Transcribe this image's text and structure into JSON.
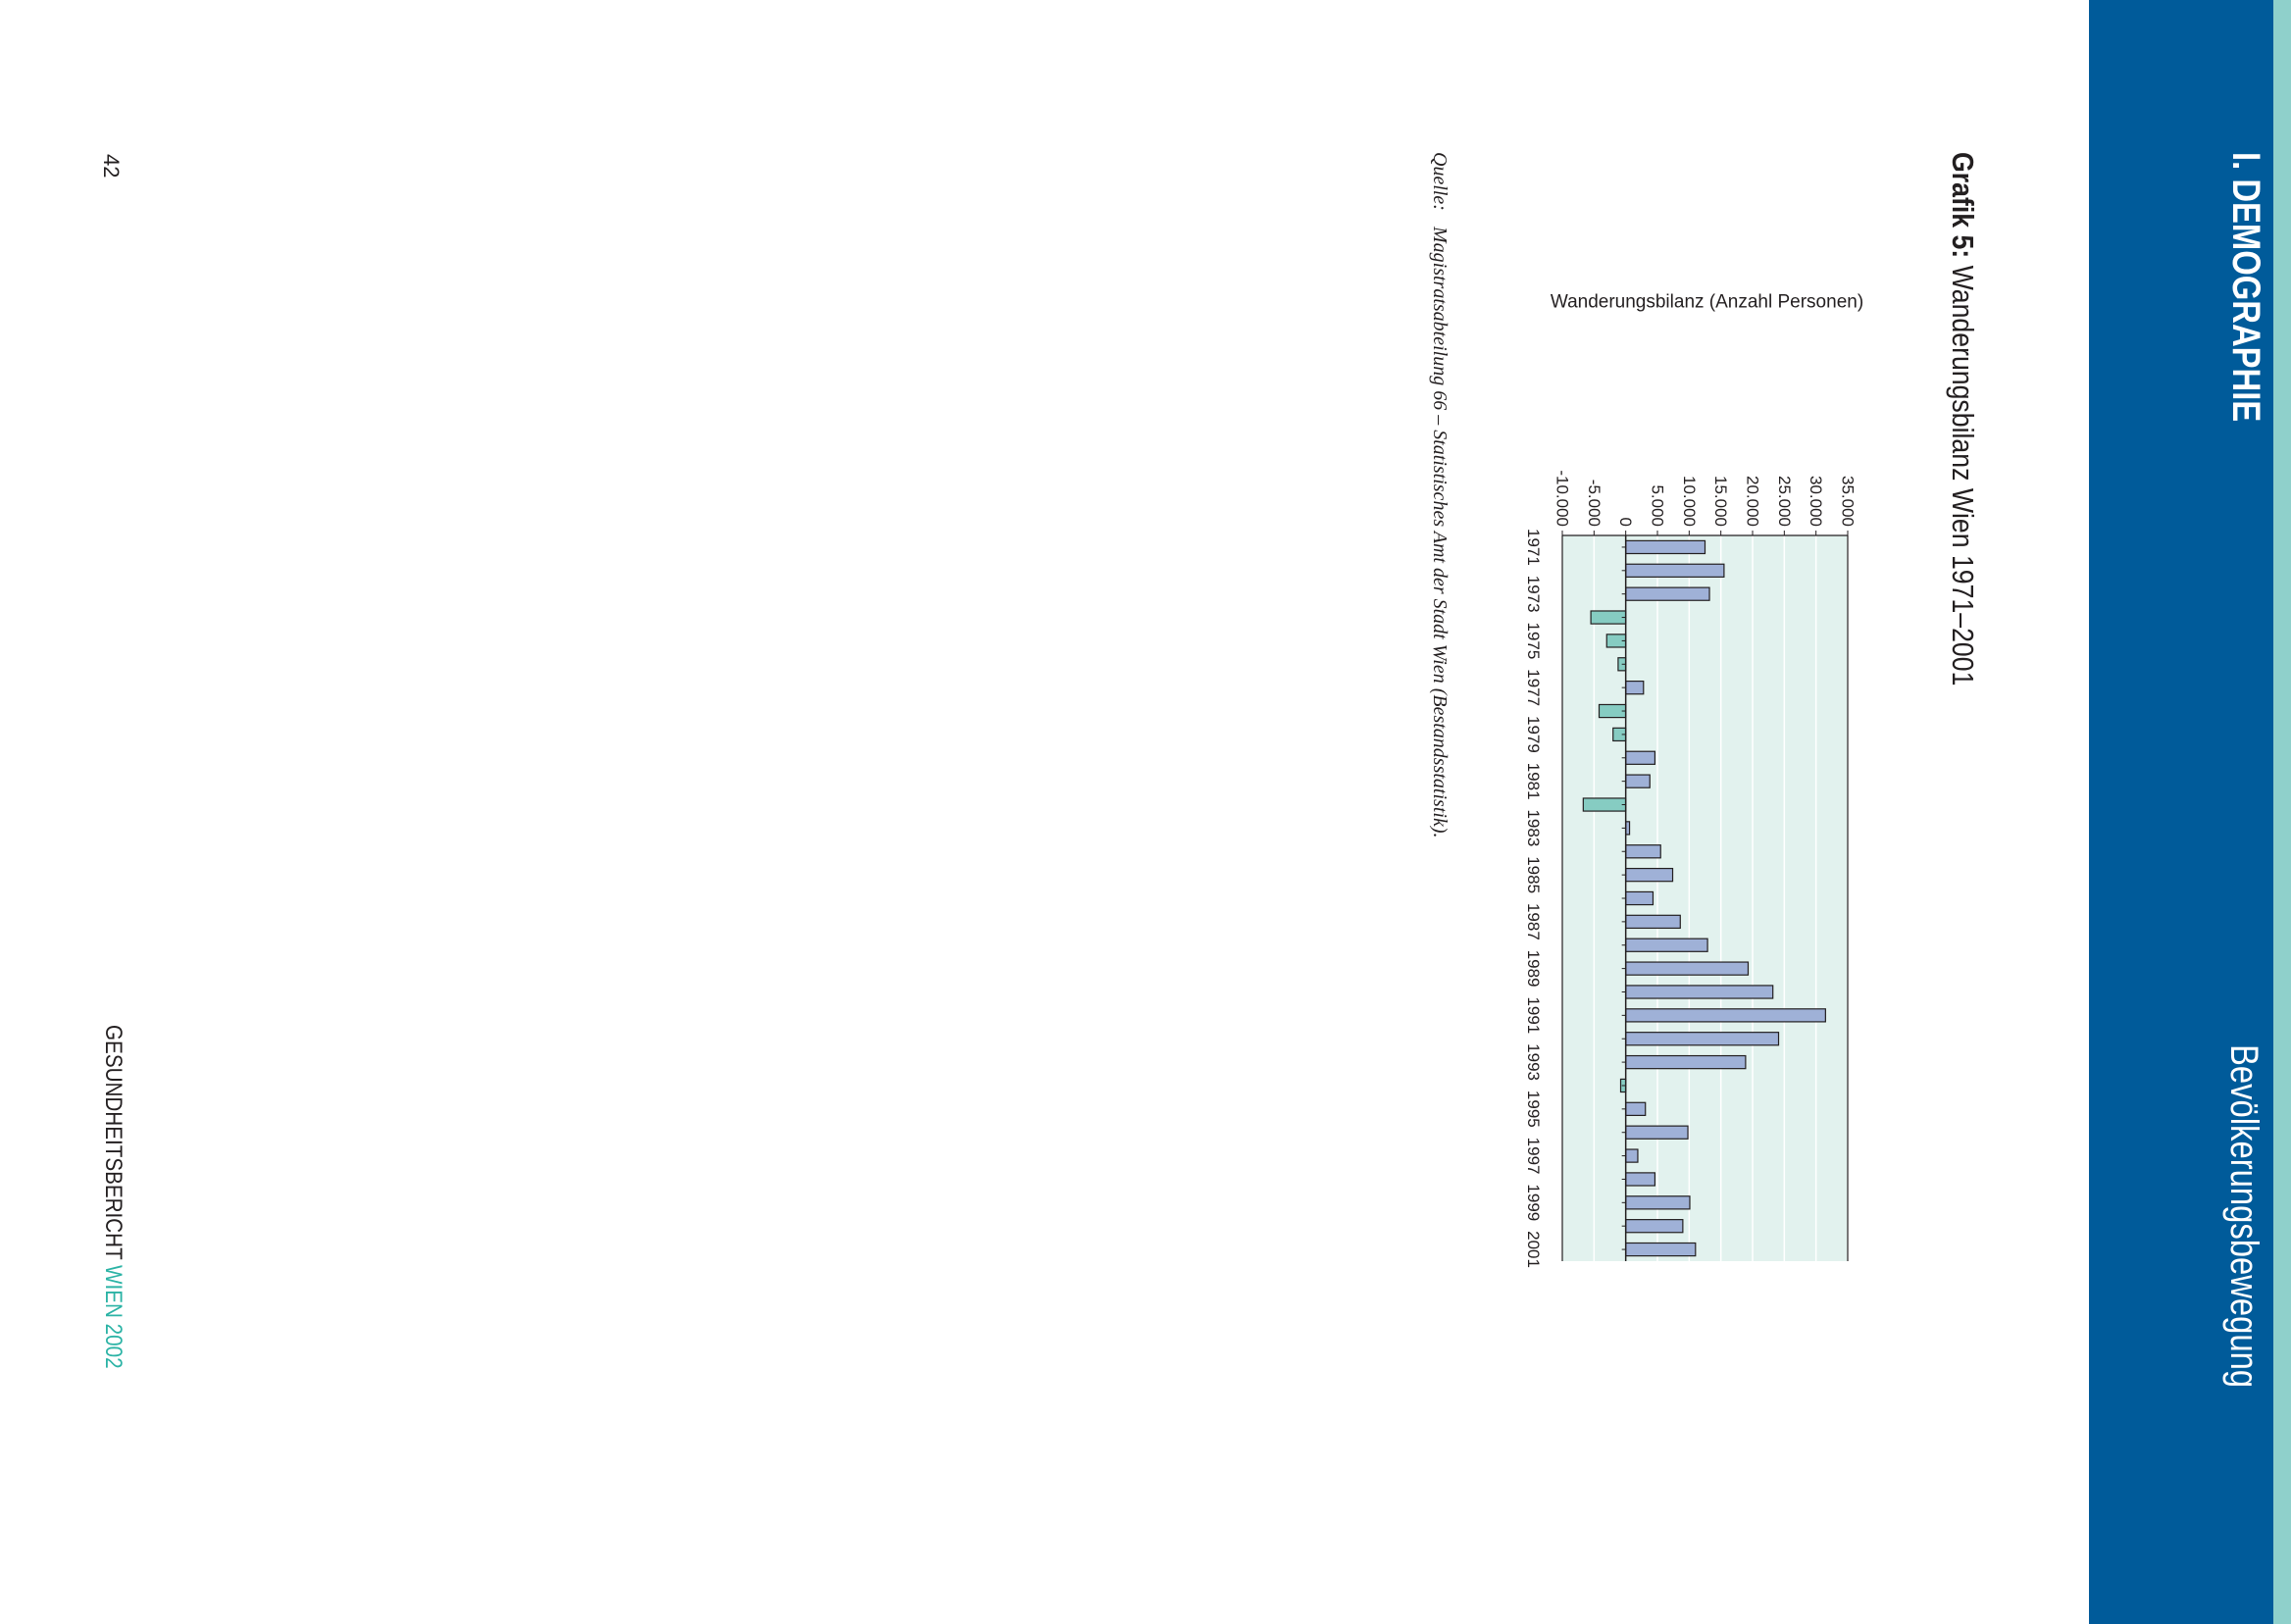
{
  "header": {
    "chapter": "I. DEMOGRAPHIE",
    "section": "Bevölkerungsbewegung",
    "colors": {
      "band_light": "#8fd0cb",
      "band_dark": "#005b9a"
    }
  },
  "figure": {
    "number": "Grafik 5:",
    "title": "Wanderungsbilanz Wien 1971–2001"
  },
  "chart_data": {
    "type": "bar",
    "orientation": "vertical-bars",
    "ylabel": "Wanderungsbilanz (Anzahl Personen)",
    "ylim": [
      -10000,
      35000
    ],
    "yticks": [
      -10000,
      -5000,
      0,
      5000,
      10000,
      15000,
      20000,
      25000,
      30000,
      35000
    ],
    "ytick_labels": [
      "-10.000",
      "-5.000",
      "0",
      "5.000",
      "10.000",
      "15.000",
      "20.000",
      "25.000",
      "30.000",
      "35.000"
    ],
    "categories": [
      "1971",
      "1972",
      "1973",
      "1974",
      "1975",
      "1976",
      "1977",
      "1978",
      "1979",
      "1980",
      "1981",
      "1982",
      "1983",
      "1984",
      "1985",
      "1986",
      "1987",
      "1988",
      "1989",
      "1990",
      "1991",
      "1992",
      "1993",
      "1994",
      "1995",
      "1996",
      "1997",
      "1998",
      "1999",
      "2000",
      "2001"
    ],
    "xtick_labels": [
      "1971",
      "",
      "1973",
      "",
      "1975",
      "",
      "1977",
      "",
      "1979",
      "",
      "1981",
      "",
      "1983",
      "",
      "1985",
      "",
      "1987",
      "",
      "1989",
      "",
      "1991",
      "",
      "1993",
      "",
      "1995",
      "",
      "1997",
      "",
      "1999",
      "",
      "2001"
    ],
    "values": [
      12500,
      15500,
      13200,
      -5500,
      -3000,
      -1200,
      2800,
      -4200,
      -2000,
      4600,
      3800,
      -6700,
      600,
      5500,
      7400,
      4300,
      8600,
      12900,
      19300,
      23200,
      31500,
      24100,
      18900,
      -800,
      3100,
      9800,
      1900,
      4600,
      10100,
      9000,
      11000
    ],
    "grid": true,
    "colors": {
      "positive": "#9fb1d7",
      "negative": "#86ccc2",
      "plot_bg": "#e2f2ee",
      "grid": "#ffffff",
      "outline": "#231f20"
    }
  },
  "source": {
    "label": "Quelle:",
    "text": "Magistratsabteilung 66 – Statistisches Amt der Stadt Wien (Bestandsstatistik)."
  },
  "footer": {
    "page_number": "42",
    "title_prefix": "GESUNDHEITSBERICHT ",
    "title_accent": "WIEN 2002"
  }
}
